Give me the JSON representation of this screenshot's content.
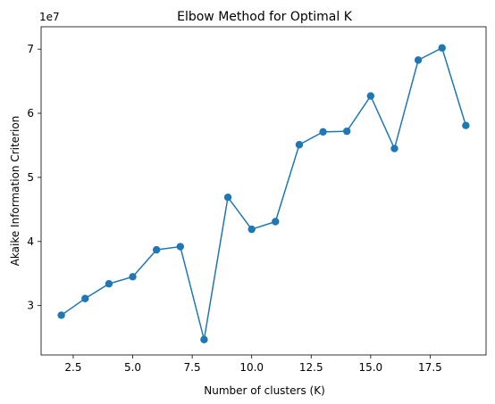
{
  "chart_data": {
    "type": "line",
    "title": "Elbow Method for Optimal K",
    "xlabel": "Number of clusters (K)",
    "ylabel": "Akaike Information Criterion",
    "y_offset_label": "1e7",
    "x_ticks": [
      2.5,
      5.0,
      7.5,
      10.0,
      12.5,
      15.0,
      17.5
    ],
    "x_tick_labels": [
      "2.5",
      "5.0",
      "7.5",
      "10.0",
      "12.5",
      "15.0",
      "17.5"
    ],
    "y_ticks": [
      3,
      4,
      5,
      6,
      7
    ],
    "y_tick_labels": [
      "3",
      "4",
      "5",
      "6",
      "7"
    ],
    "xlim": [
      1.15,
      19.85
    ],
    "ylim": [
      2.23,
      7.35
    ],
    "grid": false,
    "marker": "circle",
    "color": "#1f77b4",
    "series": [
      {
        "x": [
          2,
          3,
          4,
          5,
          6,
          7,
          8,
          9,
          10,
          11,
          12,
          13,
          14,
          15,
          16,
          17,
          18,
          19
        ],
        "values": [
          2.85,
          3.11,
          3.34,
          3.45,
          3.87,
          3.92,
          2.47,
          4.69,
          4.19,
          4.31,
          5.51,
          5.71,
          5.72,
          6.27,
          5.45,
          6.83,
          7.02,
          5.81
        ]
      }
    ]
  }
}
